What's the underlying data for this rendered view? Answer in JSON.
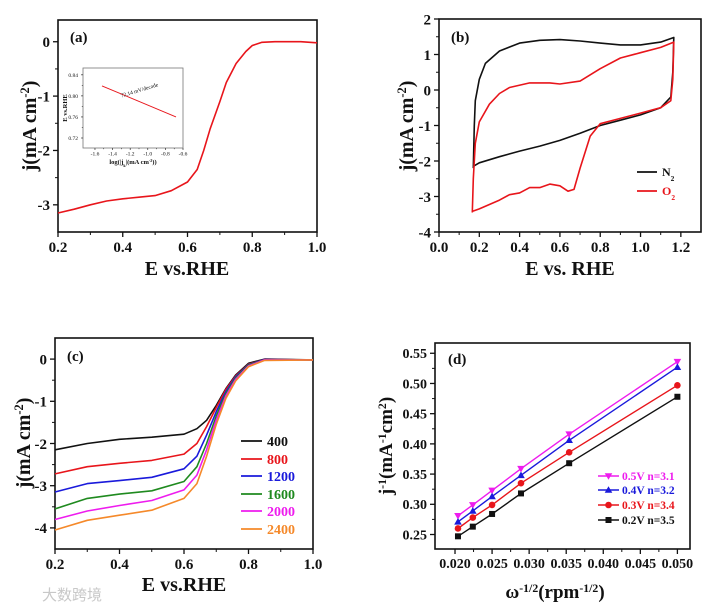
{
  "watermark": "大数跨境",
  "chart_data": [
    {
      "id": "a",
      "type": "line",
      "panel_label": "(a)",
      "xlabel": [
        {
          "t": "E vs.RHE"
        }
      ],
      "ylabel": [
        {
          "t": "j(mA cm"
        },
        {
          "t": "-2",
          "sup": true
        },
        {
          "t": ")"
        }
      ],
      "xlim": [
        0.2,
        1.0
      ],
      "ylim": [
        -3.5,
        0.4
      ],
      "xticks": [
        "0.2",
        "0.4",
        "0.6",
        "0.8",
        "1.0"
      ],
      "yticks": [
        "0",
        "-1",
        "-2",
        "-3"
      ],
      "series": [
        {
          "name": "LSV",
          "color": "#e8151b",
          "x": [
            0.2,
            0.25,
            0.3,
            0.35,
            0.4,
            0.45,
            0.5,
            0.55,
            0.6,
            0.63,
            0.65,
            0.67,
            0.7,
            0.72,
            0.75,
            0.78,
            0.8,
            0.83,
            0.87,
            0.95,
            1.0
          ],
          "y": [
            -3.15,
            -3.08,
            -3.0,
            -2.93,
            -2.89,
            -2.86,
            -2.83,
            -2.74,
            -2.58,
            -2.35,
            -2.0,
            -1.6,
            -1.1,
            -0.75,
            -0.4,
            -0.18,
            -0.07,
            -0.01,
            0,
            0,
            -0.02
          ]
        }
      ],
      "inset": {
        "xlabel": [
          {
            "t": "log(|j"
          },
          {
            "t": "k",
            "sub": true
          },
          {
            "t": "|(mA cm"
          },
          {
            "t": "-2",
            "sup": true
          },
          {
            "t": "))"
          }
        ],
        "ylabel": [
          {
            "t": "E vs.RHE"
          }
        ],
        "xlim": [
          -1.736,
          -0.6
        ],
        "ylim": [
          0.701,
          0.853
        ],
        "xticks": [
          "-1.6",
          "-1.4",
          "-1.2",
          "-1.0",
          "-0.8",
          "-0.6"
        ],
        "yticks": [
          "0.72",
          "0.76",
          "0.80",
          "0.84"
        ],
        "annotation": "72.14 mV/decade",
        "series": [
          {
            "name": "Tafel",
            "color": "#e8151b",
            "x": [
              -1.52,
              -0.68
            ],
            "y": [
              0.819,
              0.76
            ]
          }
        ]
      }
    },
    {
      "id": "b",
      "type": "line",
      "panel_label": "(b)",
      "xlabel": [
        {
          "t": "E vs. RHE"
        }
      ],
      "ylabel": [
        {
          "t": "j(mA cm"
        },
        {
          "t": "-2",
          "sup": true
        },
        {
          "t": ")"
        }
      ],
      "xlim": [
        0.0,
        1.3
      ],
      "ylim": [
        -4,
        2
      ],
      "xticks": [
        "0.0",
        "0.2",
        "0.4",
        "0.6",
        "0.8",
        "1.0",
        "1.2"
      ],
      "yticks": [
        "-4",
        "-3",
        "-2",
        "-1",
        "0",
        "1",
        "2"
      ],
      "legend_position": "bottom-right",
      "series": [
        {
          "name": "N",
          "sub": "2",
          "color": "#111111",
          "x": [
            0.17,
            0.175,
            0.18,
            0.2,
            0.23,
            0.3,
            0.4,
            0.5,
            0.6,
            0.7,
            0.8,
            0.9,
            1.0,
            1.1,
            1.165,
            1.16,
            1.15,
            1.1,
            1.0,
            0.9,
            0.8,
            0.7,
            0.6,
            0.5,
            0.4,
            0.3,
            0.2,
            0.17
          ],
          "y": [
            -2.2,
            -1.0,
            -0.3,
            0.3,
            0.75,
            1.1,
            1.32,
            1.4,
            1.42,
            1.38,
            1.32,
            1.27,
            1.27,
            1.35,
            1.48,
            0.5,
            -0.2,
            -0.5,
            -0.7,
            -0.85,
            -1.0,
            -1.22,
            -1.42,
            -1.58,
            -1.72,
            -1.88,
            -2.05,
            -2.15
          ]
        },
        {
          "name": "O",
          "sub": "2",
          "color": "#e8151b",
          "x": [
            0.165,
            0.17,
            0.18,
            0.2,
            0.25,
            0.3,
            0.35,
            0.45,
            0.55,
            0.6,
            0.7,
            0.8,
            0.9,
            1.0,
            1.1,
            1.165,
            1.16,
            1.15,
            1.1,
            1.0,
            0.9,
            0.8,
            0.75,
            0.7,
            0.67,
            0.64,
            0.6,
            0.55,
            0.5,
            0.45,
            0.4,
            0.35,
            0.3,
            0.2,
            0.165
          ],
          "y": [
            -3.45,
            -2.5,
            -1.5,
            -0.9,
            -0.4,
            -0.1,
            0.07,
            0.2,
            0.2,
            0.17,
            0.25,
            0.6,
            0.9,
            1.05,
            1.2,
            1.35,
            0.3,
            -0.3,
            -0.5,
            -0.65,
            -0.8,
            -0.95,
            -1.3,
            -2.2,
            -2.8,
            -2.85,
            -2.7,
            -2.65,
            -2.75,
            -2.75,
            -2.9,
            -2.95,
            -3.1,
            -3.35,
            -3.42
          ]
        }
      ]
    },
    {
      "id": "c",
      "type": "line",
      "panel_label": "(c)",
      "xlabel": [
        {
          "t": "E vs.RHE"
        }
      ],
      "ylabel": [
        {
          "t": "j(mA cm"
        },
        {
          "t": "-2",
          "sup": true
        },
        {
          "t": ")"
        }
      ],
      "xlim": [
        0.2,
        1.0
      ],
      "ylim": [
        -4.5,
        0.5
      ],
      "xticks": [
        "0.2",
        "0.4",
        "0.6",
        "0.8",
        "1.0"
      ],
      "yticks": [
        "-4",
        "-3",
        "-2",
        "-1",
        "0"
      ],
      "legend_position": "right",
      "x": [
        0.2,
        0.3,
        0.4,
        0.5,
        0.6,
        0.64,
        0.67,
        0.7,
        0.73,
        0.76,
        0.8,
        0.85,
        1.0
      ],
      "series": [
        {
          "name": "400",
          "color": "#111111",
          "y": [
            -2.15,
            -2.0,
            -1.9,
            -1.85,
            -1.78,
            -1.65,
            -1.45,
            -1.1,
            -0.7,
            -0.38,
            -0.1,
            0,
            -0.02
          ]
        },
        {
          "name": "800",
          "color": "#e8151b",
          "y": [
            -2.72,
            -2.55,
            -2.47,
            -2.4,
            -2.25,
            -2.0,
            -1.6,
            -1.15,
            -0.72,
            -0.4,
            -0.12,
            -0.01,
            -0.02
          ]
        },
        {
          "name": "1200",
          "color": "#1a1adb",
          "y": [
            -3.15,
            -2.95,
            -2.88,
            -2.8,
            -2.6,
            -2.3,
            -1.8,
            -1.25,
            -0.77,
            -0.42,
            -0.13,
            -0.01,
            -0.02
          ]
        },
        {
          "name": "1600",
          "color": "#1f8a1f",
          "y": [
            -3.55,
            -3.3,
            -3.2,
            -3.12,
            -2.9,
            -2.55,
            -2.0,
            -1.35,
            -0.82,
            -0.45,
            -0.14,
            -0.02,
            -0.02
          ]
        },
        {
          "name": "2000",
          "color": "#ee1cee",
          "y": [
            -3.8,
            -3.6,
            -3.47,
            -3.35,
            -3.1,
            -2.75,
            -2.15,
            -1.45,
            -0.87,
            -0.48,
            -0.16,
            -0.02,
            -0.02
          ]
        },
        {
          "name": "2400",
          "color": "#f5892a",
          "y": [
            -4.05,
            -3.82,
            -3.7,
            -3.58,
            -3.3,
            -2.95,
            -2.3,
            -1.55,
            -0.93,
            -0.52,
            -0.18,
            -0.03,
            -0.02
          ]
        }
      ]
    },
    {
      "id": "d",
      "type": "line",
      "panel_label": "(d)",
      "xlabel": [
        {
          "t": "ω"
        },
        {
          "t": "-1/2",
          "sup": true
        },
        {
          "t": "(rpm"
        },
        {
          "t": "-1/2",
          "sup": true
        },
        {
          "t": ")"
        }
      ],
      "ylabel": [
        {
          "t": "j"
        },
        {
          "t": "-1",
          "sup": true
        },
        {
          "t": "(mA"
        },
        {
          "t": "-1",
          "sup": true
        },
        {
          "t": "cm"
        },
        {
          "t": "2",
          "sup": true
        },
        {
          "t": ")"
        }
      ],
      "xlim": [
        0.0173,
        0.0517
      ],
      "ylim": [
        0.226,
        0.567
      ],
      "xticks": [
        "0.020",
        "0.025",
        "0.030",
        "0.035",
        "0.040",
        "0.045",
        "0.050"
      ],
      "yticks": [
        "0.25",
        "0.30",
        "0.35",
        "0.40",
        "0.45",
        "0.50",
        "0.55"
      ],
      "legend_position": "bottom-right",
      "x": [
        0.0204,
        0.0224,
        0.025,
        0.0289,
        0.0354,
        0.05
      ],
      "series": [
        {
          "name": "0.5V n=3.1",
          "color": "#ee1cee",
          "marker": "triangle-down",
          "y": [
            0.281,
            0.299,
            0.323,
            0.359,
            0.416,
            0.536
          ]
        },
        {
          "name": "0.4V n=3.2",
          "color": "#1a1adb",
          "marker": "triangle-up",
          "y": [
            0.271,
            0.289,
            0.313,
            0.348,
            0.406,
            0.527
          ]
        },
        {
          "name": "0.3V n=3.4",
          "color": "#e8151b",
          "marker": "circle",
          "y": [
            0.26,
            0.278,
            0.299,
            0.335,
            0.386,
            0.497
          ]
        },
        {
          "name": "0.2V n=3.5",
          "color": "#111111",
          "marker": "square",
          "y": [
            0.247,
            0.263,
            0.284,
            0.318,
            0.368,
            0.478
          ]
        }
      ]
    }
  ]
}
